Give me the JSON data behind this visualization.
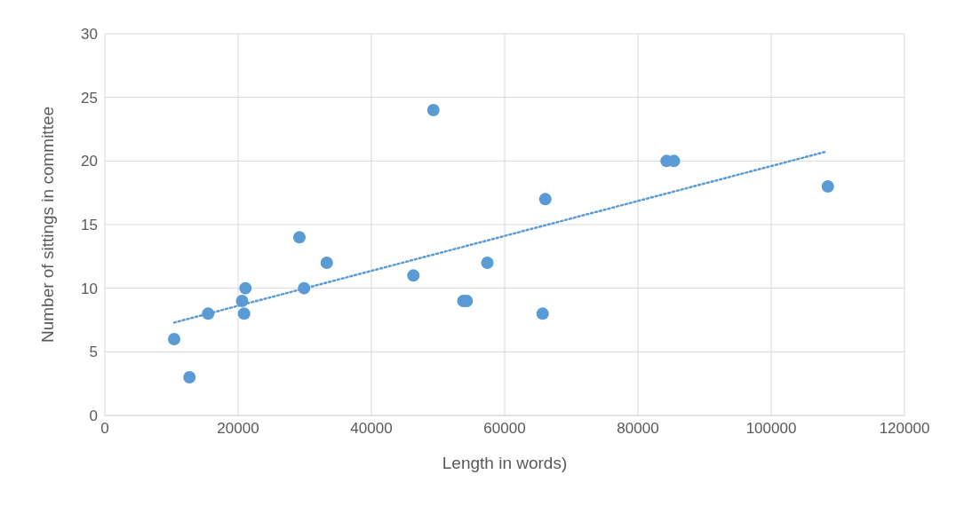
{
  "chart_data": {
    "type": "scatter",
    "xlabel": "Length in words)",
    "ylabel": "Number of sittings in committee",
    "xlim": [
      0,
      120000
    ],
    "xticks": [
      0,
      20000,
      40000,
      60000,
      80000,
      100000,
      120000
    ],
    "ylim": [
      0,
      30
    ],
    "yticks": [
      0,
      5,
      10,
      15,
      20,
      25,
      30
    ],
    "grid": true,
    "legend": false,
    "series": [
      {
        "color": "#5b9bd5",
        "marker": "circle",
        "x": [
          10400,
          12700,
          15500,
          20600,
          20900,
          21100,
          29200,
          29900,
          33300,
          46300,
          49300,
          53800,
          54300,
          57400,
          65700,
          66100,
          84300,
          85400,
          108500
        ],
        "values": [
          6,
          3,
          8,
          9,
          8,
          10,
          14,
          10,
          12,
          11,
          24,
          9,
          9,
          12,
          8,
          17,
          20,
          20,
          18
        ]
      },
      {
        "type": "line",
        "color": "#5b9bd5",
        "line_style": "dotted",
        "marker": "none",
        "x": [
          10400,
          108000
        ],
        "values": [
          7.3,
          20.7
        ]
      }
    ]
  }
}
